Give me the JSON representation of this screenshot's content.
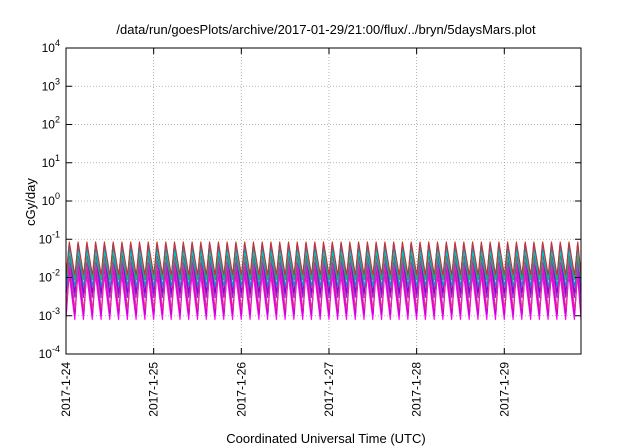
{
  "chart_data": {
    "type": "line",
    "title": "/data/run/goesPlots/archive/2017-01-29/21:00/flux/../bryn/5daysMars.plot",
    "xlabel": "Coordinated Universal Time (UTC)",
    "ylabel": "cGy/day",
    "y_scale": "log",
    "ylim": [
      0.0001,
      10000
    ],
    "y_ticks": [
      {
        "base": "10",
        "exp": "4"
      },
      {
        "base": "10",
        "exp": "3"
      },
      {
        "base": "10",
        "exp": "2"
      },
      {
        "base": "10",
        "exp": "1"
      },
      {
        "base": "10",
        "exp": "0"
      },
      {
        "base": "10",
        "exp": "-1"
      },
      {
        "base": "10",
        "exp": "-2"
      },
      {
        "base": "10",
        "exp": "-3"
      },
      {
        "base": "10",
        "exp": "-4"
      }
    ],
    "x_range": [
      "2017-01-24",
      "2017-01-29 21:00"
    ],
    "x_tick_labels": [
      "2017-1-24",
      "2017-1-25",
      "2017-1-26",
      "2017-1-27",
      "2017-1-28",
      "2017-1-29"
    ],
    "grid": true,
    "cycles_per_day": 10,
    "series": [
      {
        "color": "#ff00ff",
        "peak": 0.012,
        "trough": 0.0008
      },
      {
        "color": "#cc00cc",
        "peak": 0.018,
        "trough": 0.0011
      },
      {
        "color": "#e0309a",
        "peak": 0.025,
        "trough": 0.0016
      },
      {
        "color": "#8a2be2",
        "peak": 0.04,
        "trough": 0.003
      },
      {
        "color": "#9400d3",
        "peak": 0.05,
        "trough": 0.004
      },
      {
        "color": "#2a7fbf",
        "peak": 0.065,
        "trough": 0.006
      },
      {
        "color": "#1e5bd6",
        "peak": 0.075,
        "trough": 0.009
      },
      {
        "color": "#00a0c0",
        "peak": 0.06,
        "trough": 0.011
      },
      {
        "color": "#00c8c8",
        "peak": 0.045,
        "trough": 0.013
      },
      {
        "color": "#20b070",
        "peak": 0.035,
        "trough": 0.009
      },
      {
        "color": "#cc3030",
        "peak": 0.085,
        "trough": 0.012
      }
    ]
  }
}
